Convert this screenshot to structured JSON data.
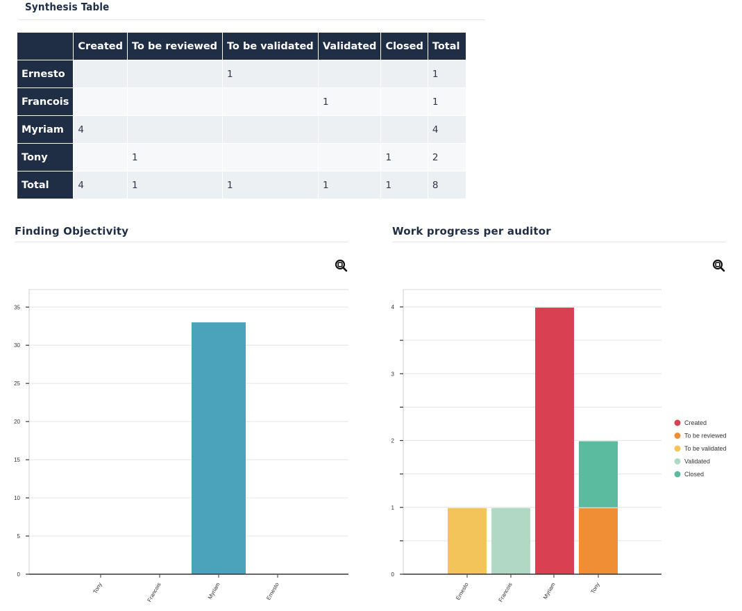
{
  "synthesis": {
    "title": "Synthesis Table",
    "columns": [
      "",
      "Created",
      "To be reviewed",
      "To be validated",
      "Validated",
      "Closed",
      "Total"
    ],
    "rows": [
      {
        "label": "Ernesto",
        "cells": [
          "",
          "",
          "1",
          "",
          "",
          "1"
        ]
      },
      {
        "label": "Francois",
        "cells": [
          "",
          "",
          "",
          "1",
          "",
          "1"
        ]
      },
      {
        "label": "Myriam",
        "cells": [
          "4",
          "",
          "",
          "",
          "",
          "4"
        ]
      },
      {
        "label": "Tony",
        "cells": [
          "",
          "1",
          "",
          "",
          "1",
          "2"
        ]
      },
      {
        "label": "Total",
        "cells": [
          "4",
          "1",
          "1",
          "1",
          "1",
          "8"
        ]
      }
    ]
  },
  "objectivity": {
    "title": "Finding Objectivity",
    "zoom_icon": "zoom-in-icon"
  },
  "work_progress": {
    "title": "Work progress per auditor",
    "zoom_icon": "zoom-in-icon"
  },
  "chart_data": [
    {
      "id": "finding-objectivity",
      "type": "bar",
      "title": "Finding Objectivity",
      "xlabel": "",
      "ylabel": "",
      "categories": [
        "Tony",
        "Francois",
        "Myriam",
        "Ernesto"
      ],
      "values": [
        0,
        0,
        33,
        0
      ],
      "color": "#4ba3bb",
      "ylim": [
        0,
        37.3
      ],
      "yticks": [
        0,
        5,
        10,
        15,
        20,
        25,
        30,
        35
      ],
      "grid": true,
      "legend": "none"
    },
    {
      "id": "work-progress-per-auditor",
      "type": "bar",
      "stacked": true,
      "title": "Work progress per auditor",
      "xlabel": "",
      "ylabel": "",
      "categories": [
        "Ernesto",
        "Francois",
        "Myriam",
        "Tony"
      ],
      "series": [
        {
          "name": "Created",
          "color": "#d94052",
          "values": [
            0,
            0,
            4,
            0
          ]
        },
        {
          "name": "To be reviewed",
          "color": "#ef8e34",
          "values": [
            0,
            0,
            0,
            1
          ]
        },
        {
          "name": "To be validated",
          "color": "#f2c45a",
          "values": [
            1,
            0,
            0,
            0
          ]
        },
        {
          "name": "Validated",
          "color": "#b0d8c4",
          "values": [
            0,
            1,
            0,
            0
          ]
        },
        {
          "name": "Closed",
          "color": "#5bbb9e",
          "values": [
            0,
            0,
            0,
            1
          ]
        }
      ],
      "ylim": [
        0,
        4.26
      ],
      "yticks": [
        0,
        0.5,
        1,
        1.5,
        2,
        2.5,
        3,
        3.5,
        4
      ],
      "ytick_labels": [
        "0",
        "",
        "1",
        "",
        "2",
        "",
        "3",
        "",
        "4"
      ],
      "grid": true,
      "legend": "right"
    }
  ]
}
